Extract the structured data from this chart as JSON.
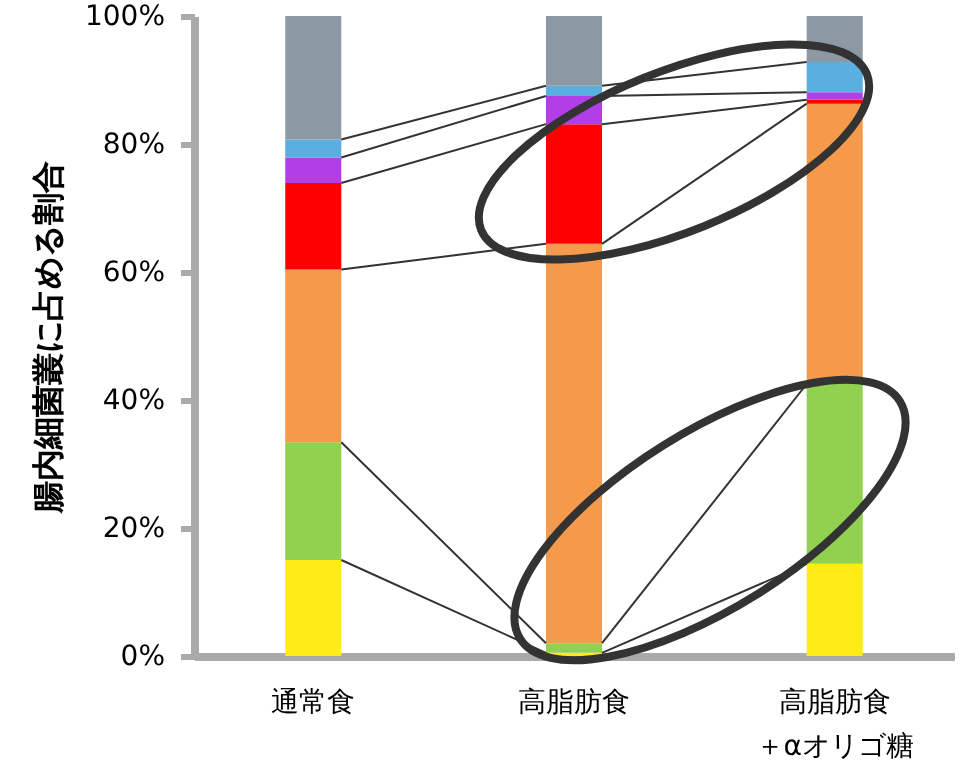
{
  "chart_data": {
    "type": "bar",
    "stacked": true,
    "ylabel": "腸内細菌叢に占める割合",
    "categories": [
      "通常食",
      "高脂肪食",
      "高脂肪食＋αオリゴ糖"
    ],
    "ylim": [
      0,
      100
    ],
    "yticks": [
      {
        "value": 0,
        "label": "0%"
      },
      {
        "value": 20,
        "label": "20%"
      },
      {
        "value": 40,
        "label": "40%"
      },
      {
        "value": 60,
        "label": "60%"
      },
      {
        "value": 80,
        "label": "80%"
      },
      {
        "value": 100,
        "label": "100%"
      }
    ],
    "grid": false,
    "series": [
      {
        "color": "#ffeb16",
        "values": [
          15,
          0.5,
          14.4
        ]
      },
      {
        "color": "#92d050",
        "values": [
          18.4,
          1.5,
          28.1
        ]
      },
      {
        "color": "#f5994a",
        "values": [
          27,
          62.4,
          43.8
        ]
      },
      {
        "color": "#ff0000",
        "values": [
          13.5,
          18.7,
          0.6
        ]
      },
      {
        "color": "#b23ee8",
        "values": [
          4,
          4.4,
          1.2
        ]
      },
      {
        "color": "#5aaee0",
        "values": [
          2.8,
          1.6,
          4.7
        ]
      },
      {
        "color": "#8c98a3",
        "values": [
          19.3,
          10.9,
          7.2
        ]
      }
    ]
  }
}
